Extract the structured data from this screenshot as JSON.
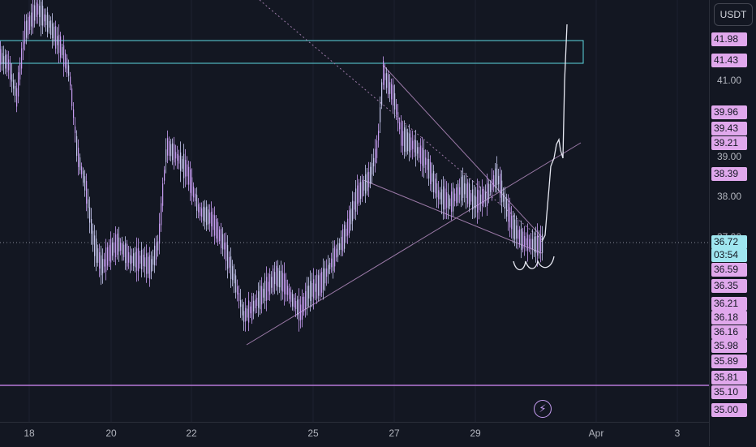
{
  "currency_button": "USDT",
  "colors": {
    "background": "#131722",
    "candle": "#c7c9f0",
    "candle_alt": "#c79df2",
    "zone_border": "#5dd7e0",
    "support_line": "#b878d8",
    "trend_line": "#9c7aa8",
    "price_label_bg": "#e0a8ec",
    "current_price_bg": "#9fe6f0"
  },
  "price_ticks": [
    "41.00",
    "39.00",
    "38.00",
    "37.00"
  ],
  "price_labels": [
    "41.98",
    "41.43",
    "39.96",
    "39.43",
    "39.21",
    "38.39",
    "36.72",
    "03:54",
    "36.59",
    "36.35",
    "36.21",
    "36.18",
    "36.16",
    "35.98",
    "35.89",
    "35.81",
    "35.10",
    "35.00"
  ],
  "time_labels": [
    "18",
    "20",
    "22",
    "25",
    "27",
    "29",
    "Apr",
    "3"
  ],
  "flash_icon": "lightning-bolt-icon"
}
